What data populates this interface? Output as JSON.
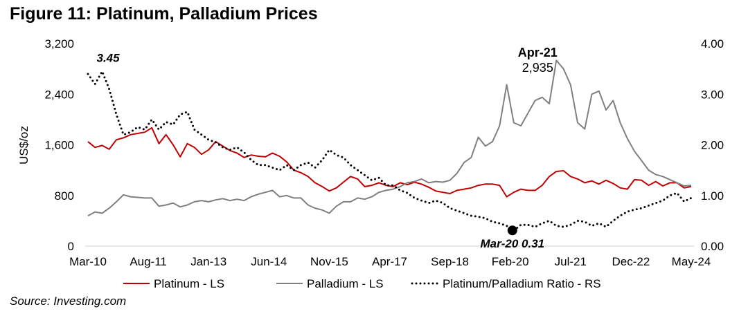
{
  "title": "Figure 11: Platinum, Palladium Prices",
  "source": "Source: Investing.com",
  "chart_data": {
    "type": "line",
    "title": "Figure 11: Platinum, Palladium Prices",
    "ylabel": "US$/oz",
    "ylim": [
      0,
      3200
    ],
    "y2lim": [
      0,
      4
    ],
    "yticks": [
      "0",
      "800",
      "1,600",
      "2,400",
      "3,200"
    ],
    "y2ticks": [
      "0.00",
      "1.00",
      "2.00",
      "3.00",
      "4.00"
    ],
    "xticks": [
      "Mar-10",
      "Aug-11",
      "Jan-13",
      "Jun-14",
      "Nov-15",
      "Apr-17",
      "Sep-18",
      "Feb-20",
      "Jul-21",
      "Dec-22",
      "May-24"
    ],
    "x_note": "bi-monthly samples from Mar-10 to May-24",
    "legend_position": "bottom",
    "series": [
      {
        "name": "Platinum - LS",
        "axis": "left",
        "color": "#C00000",
        "style": "solid",
        "values": [
          1650,
          1560,
          1590,
          1530,
          1680,
          1710,
          1760,
          1780,
          1800,
          1870,
          1620,
          1760,
          1600,
          1410,
          1620,
          1560,
          1450,
          1520,
          1650,
          1580,
          1510,
          1470,
          1400,
          1440,
          1420,
          1410,
          1470,
          1420,
          1330,
          1200,
          1160,
          1100,
          1000,
          940,
          870,
          920,
          1010,
          1100,
          1060,
          940,
          960,
          1000,
          960,
          940,
          1000,
          970,
          1010,
          980,
          930,
          870,
          850,
          830,
          880,
          900,
          920,
          960,
          980,
          980,
          960,
          780,
          850,
          900,
          880,
          880,
          960,
          1100,
          1180,
          1190,
          1100,
          1060,
          1000,
          1030,
          980,
          1040,
          990,
          920,
          900,
          1050,
          1040,
          960,
          1020,
          950,
          1000,
          1000,
          920,
          940
        ]
      },
      {
        "name": "Palladium - LS",
        "axis": "left",
        "color": "#7F7F7F",
        "style": "solid",
        "values": [
          480,
          540,
          520,
          600,
          700,
          810,
          780,
          770,
          760,
          760,
          630,
          650,
          680,
          620,
          650,
          700,
          720,
          700,
          730,
          750,
          720,
          740,
          720,
          780,
          820,
          850,
          880,
          780,
          800,
          760,
          760,
          650,
          600,
          570,
          520,
          630,
          700,
          700,
          760,
          740,
          780,
          850,
          880,
          900,
          940,
          1000,
          1020,
          1060,
          1000,
          1020,
          1010,
          1040,
          1150,
          1320,
          1400,
          1720,
          1580,
          1650,
          1900,
          2550,
          1950,
          1900,
          2100,
          2300,
          2350,
          2250,
          2935,
          2800,
          2550,
          1950,
          1850,
          2400,
          2450,
          2150,
          2300,
          1950,
          1700,
          1500,
          1350,
          1200,
          1130,
          1100,
          1050,
          1000,
          950,
          960
        ]
      },
      {
        "name": "Platinum/Palladium Ratio - RS",
        "axis": "right",
        "color": "#000000",
        "style": "dotted",
        "values": [
          3.4,
          3.2,
          3.45,
          3.1,
          2.6,
          2.2,
          2.25,
          2.35,
          2.3,
          2.5,
          2.3,
          2.45,
          2.4,
          2.6,
          2.65,
          2.3,
          2.2,
          2.1,
          2.05,
          1.95,
          1.9,
          1.95,
          1.85,
          1.7,
          1.6,
          1.6,
          1.55,
          1.5,
          1.6,
          1.5,
          1.6,
          1.65,
          1.55,
          1.7,
          1.9,
          1.8,
          1.75,
          1.6,
          1.5,
          1.4,
          1.3,
          1.35,
          1.2,
          1.2,
          1.1,
          1.05,
          0.95,
          0.9,
          0.85,
          0.9,
          0.85,
          0.75,
          0.7,
          0.65,
          0.6,
          0.58,
          0.55,
          0.48,
          0.45,
          0.4,
          0.31,
          0.42,
          0.42,
          0.38,
          0.45,
          0.5,
          0.4,
          0.38,
          0.42,
          0.5,
          0.48,
          0.4,
          0.45,
          0.38,
          0.5,
          0.6,
          0.68,
          0.72,
          0.75,
          0.8,
          0.85,
          0.9,
          1.0,
          1.05,
          0.88,
          0.95
        ]
      }
    ],
    "annotations": [
      {
        "text": "3.45",
        "series": "Platinum/Palladium Ratio - RS",
        "index": 2,
        "value": 3.45
      },
      {
        "text": "Apr-21",
        "value_text": "2,935",
        "series": "Palladium - LS",
        "index": 66,
        "value": 2935
      },
      {
        "text": "Mar-20 0.31",
        "series": "Platinum/Palladium Ratio - RS",
        "index": 60,
        "value": 0.31
      }
    ]
  }
}
